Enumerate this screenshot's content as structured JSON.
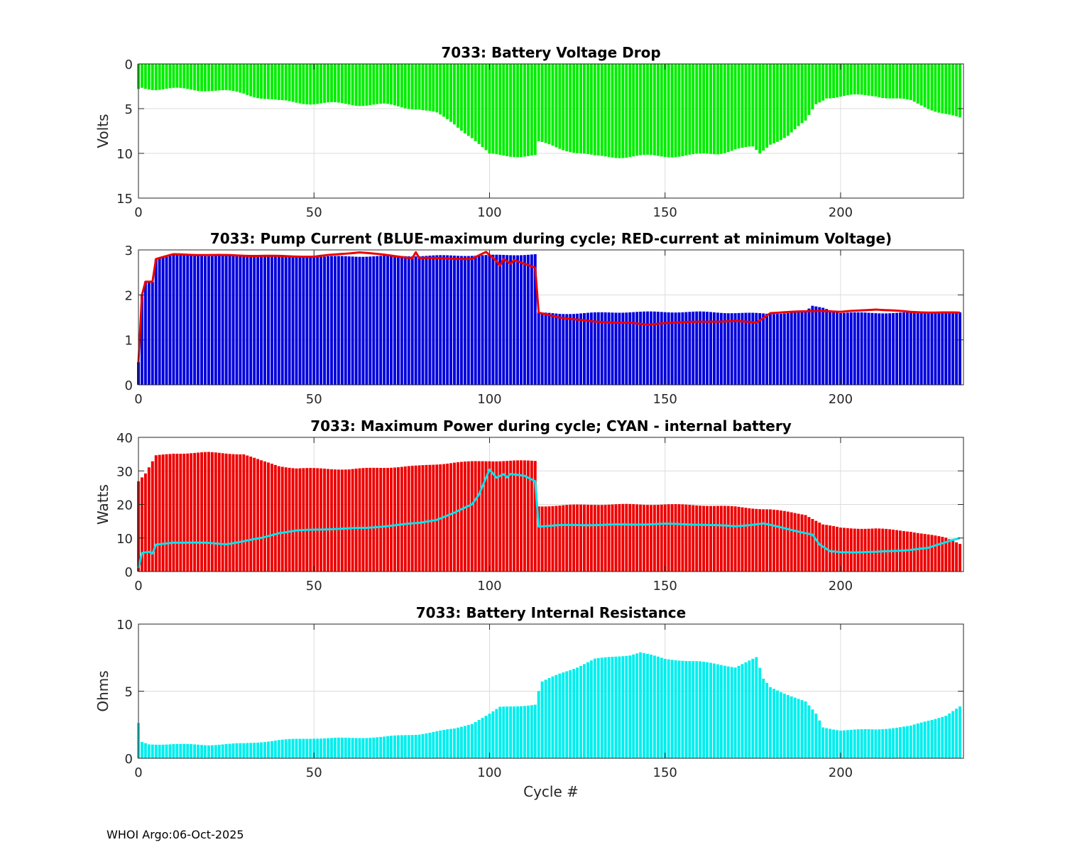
{
  "footer": "WHOI Argo:06-Oct-2025",
  "chart_data": [
    {
      "type": "bar",
      "title": "7033: Battery Voltage Drop",
      "xlabel": "",
      "ylabel": "Volts",
      "xlim": [
        0,
        235
      ],
      "ylim": [
        0,
        15
      ],
      "y_reversed": true,
      "xticks": [
        "0",
        "50",
        "100",
        "150",
        "200"
      ],
      "yticks": [
        "0",
        "5",
        "10",
        "15"
      ],
      "grid": true,
      "bar_color": "#00ee00",
      "anchors": [
        [
          0,
          2.8
        ],
        [
          1,
          2.6
        ],
        [
          5,
          2.8
        ],
        [
          20,
          2.9
        ],
        [
          30,
          3.3
        ],
        [
          40,
          4.2
        ],
        [
          50,
          4.4
        ],
        [
          60,
          4.5
        ],
        [
          70,
          4.6
        ],
        [
          80,
          5.0
        ],
        [
          85,
          5.6
        ],
        [
          90,
          6.7
        ],
        [
          95,
          8.2
        ],
        [
          100,
          10.2
        ],
        [
          113,
          10.3
        ],
        [
          114,
          8.8
        ],
        [
          125,
          9.9
        ],
        [
          130,
          10.4
        ],
        [
          150,
          10.3
        ],
        [
          160,
          10.2
        ],
        [
          165,
          10.0
        ],
        [
          170,
          9.5
        ],
        [
          175,
          9.4
        ],
        [
          177,
          10.1
        ],
        [
          180,
          8.9
        ],
        [
          185,
          8.0
        ],
        [
          190,
          6.5
        ],
        [
          193,
          4.5
        ],
        [
          196,
          3.7
        ],
        [
          210,
          3.5
        ],
        [
          220,
          4.2
        ],
        [
          230,
          5.6
        ],
        [
          235,
          6.3
        ]
      ]
    },
    {
      "type": "bar",
      "title": "7033: Pump Current (BLUE-maximum during cycle; RED-current at minimum Voltage)",
      "xlabel": "",
      "ylabel": "",
      "xlim": [
        0,
        235
      ],
      "ylim": [
        0,
        3
      ],
      "xticks": [
        "0",
        "50",
        "100",
        "150",
        "200"
      ],
      "yticks": [
        "0",
        "1",
        "2",
        "3"
      ],
      "grid": true,
      "bar_color": "#0000dd",
      "line_color": "#ee0000",
      "anchors": [
        [
          0,
          0.5
        ],
        [
          1,
          2.0
        ],
        [
          2,
          2.3
        ],
        [
          4,
          2.3
        ],
        [
          5,
          2.8
        ],
        [
          10,
          2.88
        ],
        [
          50,
          2.85
        ],
        [
          100,
          2.88
        ],
        [
          113,
          2.9
        ],
        [
          114,
          1.6
        ],
        [
          120,
          1.58
        ],
        [
          140,
          1.62
        ],
        [
          160,
          1.62
        ],
        [
          180,
          1.58
        ],
        [
          190,
          1.62
        ],
        [
          192,
          1.75
        ],
        [
          195,
          1.72
        ],
        [
          200,
          1.6
        ],
        [
          235,
          1.6
        ]
      ],
      "line_anchors": [
        [
          0,
          0.5
        ],
        [
          1,
          2.0
        ],
        [
          2,
          2.3
        ],
        [
          4,
          2.3
        ],
        [
          5,
          2.8
        ],
        [
          10,
          2.9
        ],
        [
          50,
          2.85
        ],
        [
          63,
          2.95
        ],
        [
          78,
          2.82
        ],
        [
          79,
          2.95
        ],
        [
          80,
          2.82
        ],
        [
          95,
          2.8
        ],
        [
          99,
          2.95
        ],
        [
          102,
          2.75
        ],
        [
          103,
          2.65
        ],
        [
          104,
          2.8
        ],
        [
          106,
          2.7
        ],
        [
          107,
          2.78
        ],
        [
          113,
          2.6
        ],
        [
          114,
          1.6
        ],
        [
          120,
          1.5
        ],
        [
          130,
          1.4
        ],
        [
          140,
          1.38
        ],
        [
          145,
          1.33
        ],
        [
          150,
          1.38
        ],
        [
          160,
          1.4
        ],
        [
          170,
          1.42
        ],
        [
          176,
          1.38
        ],
        [
          180,
          1.6
        ],
        [
          195,
          1.65
        ],
        [
          200,
          1.62
        ],
        [
          205,
          1.65
        ],
        [
          210,
          1.68
        ],
        [
          220,
          1.62
        ],
        [
          235,
          1.6
        ]
      ]
    },
    {
      "type": "bar",
      "title": "7033: Maximum Power during cycle; CYAN - internal battery",
      "xlabel": "",
      "ylabel": "Watts",
      "xlim": [
        0,
        235
      ],
      "ylim": [
        0,
        40
      ],
      "xticks": [
        "0",
        "50",
        "100",
        "150",
        "200"
      ],
      "yticks": [
        "0",
        "10",
        "20",
        "30",
        "40"
      ],
      "grid": true,
      "bar_color": "#ee0000",
      "line_color": "#00e5ee",
      "anchors": [
        [
          0,
          27
        ],
        [
          2,
          29.2
        ],
        [
          5,
          34.5
        ],
        [
          10,
          35.2
        ],
        [
          20,
          35.5
        ],
        [
          30,
          35
        ],
        [
          35,
          33
        ],
        [
          40,
          31.5
        ],
        [
          45,
          30.8
        ],
        [
          60,
          30.5
        ],
        [
          70,
          31
        ],
        [
          80,
          31.5
        ],
        [
          90,
          32.5
        ],
        [
          100,
          33
        ],
        [
          113,
          33
        ],
        [
          114,
          19.5
        ],
        [
          130,
          20
        ],
        [
          140,
          20
        ],
        [
          150,
          20
        ],
        [
          160,
          19.8
        ],
        [
          170,
          19.3
        ],
        [
          180,
          18.5
        ],
        [
          190,
          17
        ],
        [
          195,
          14
        ],
        [
          200,
          13
        ],
        [
          210,
          12.8
        ],
        [
          220,
          12
        ],
        [
          230,
          10
        ],
        [
          235,
          8
        ]
      ],
      "line_anchors": [
        [
          0,
          1
        ],
        [
          1,
          5.5
        ],
        [
          3,
          5.8
        ],
        [
          4,
          5.3
        ],
        [
          5,
          8
        ],
        [
          10,
          8.7
        ],
        [
          20,
          8.5
        ],
        [
          25,
          8.2
        ],
        [
          30,
          9
        ],
        [
          35,
          10
        ],
        [
          40,
          11.5
        ],
        [
          45,
          12.2
        ],
        [
          55,
          12.7
        ],
        [
          65,
          13
        ],
        [
          80,
          14.5
        ],
        [
          85,
          15.5
        ],
        [
          90,
          17.5
        ],
        [
          95,
          20
        ],
        [
          97,
          23
        ],
        [
          100,
          30.5
        ],
        [
          102,
          28
        ],
        [
          104,
          29
        ],
        [
          105,
          28
        ],
        [
          106,
          29
        ],
        [
          110,
          28.5
        ],
        [
          113,
          27
        ],
        [
          114,
          13.5
        ],
        [
          120,
          13.8
        ],
        [
          140,
          14
        ],
        [
          150,
          14.2
        ],
        [
          160,
          14
        ],
        [
          170,
          13.5
        ],
        [
          178,
          14.3
        ],
        [
          190,
          11.5
        ],
        [
          192,
          11
        ],
        [
          194,
          8
        ],
        [
          197,
          6
        ],
        [
          200,
          5.8
        ],
        [
          210,
          5.8
        ],
        [
          220,
          6.5
        ],
        [
          225,
          7
        ],
        [
          232,
          9.5
        ],
        [
          234,
          10
        ],
        [
          235,
          10
        ]
      ]
    },
    {
      "type": "bar",
      "title": "7033: Battery Internal Resistance",
      "xlabel": "Cycle #",
      "ylabel": "Ohms",
      "xlim": [
        0,
        235
      ],
      "ylim": [
        0,
        10
      ],
      "xticks": [
        "0",
        "50",
        "100",
        "150",
        "200"
      ],
      "yticks": [
        "0",
        "5",
        "10"
      ],
      "grid": true,
      "bar_color": "#00eeee",
      "anchors": [
        [
          0,
          2.6
        ],
        [
          1,
          1.2
        ],
        [
          3,
          1.05
        ],
        [
          10,
          1.05
        ],
        [
          20,
          1.0
        ],
        [
          30,
          1.1
        ],
        [
          40,
          1.35
        ],
        [
          50,
          1.5
        ],
        [
          60,
          1.5
        ],
        [
          70,
          1.6
        ],
        [
          80,
          1.8
        ],
        [
          90,
          2.2
        ],
        [
          95,
          2.6
        ],
        [
          100,
          3.3
        ],
        [
          103,
          3.8
        ],
        [
          113,
          4.0
        ],
        [
          114,
          5.0
        ],
        [
          115,
          5.7
        ],
        [
          120,
          6.3
        ],
        [
          125,
          6.8
        ],
        [
          130,
          7.4
        ],
        [
          140,
          7.7
        ],
        [
          143,
          7.9
        ],
        [
          150,
          7.4
        ],
        [
          160,
          7.2
        ],
        [
          170,
          6.8
        ],
        [
          176,
          7.5
        ],
        [
          178,
          5.9
        ],
        [
          180,
          5.3
        ],
        [
          190,
          4.2
        ],
        [
          193,
          3.3
        ],
        [
          195,
          2.3
        ],
        [
          200,
          2.1
        ],
        [
          210,
          2.15
        ],
        [
          220,
          2.4
        ],
        [
          230,
          3.2
        ],
        [
          235,
          4.0
        ]
      ]
    }
  ]
}
